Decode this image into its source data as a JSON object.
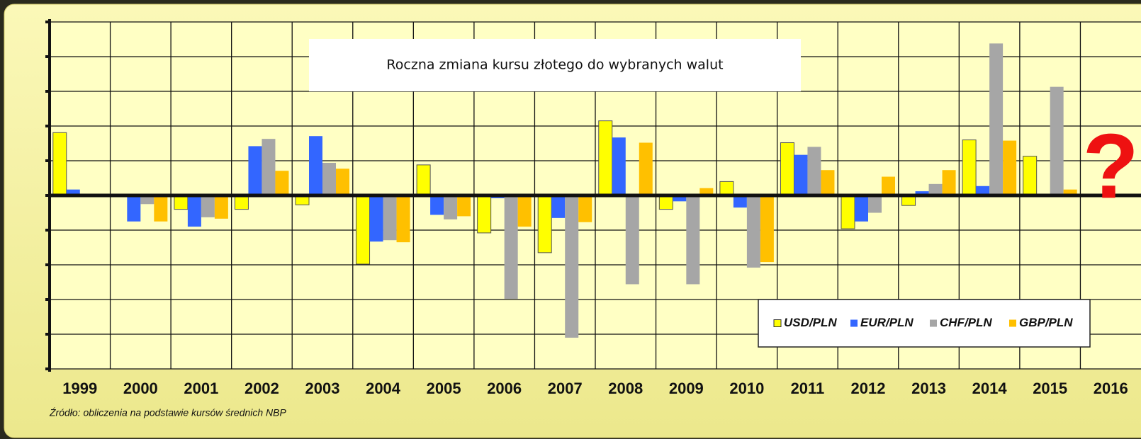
{
  "chart_data": {
    "type": "bar",
    "title": "Roczna zmiana kursu złotego do wybranych walut",
    "source": "Źródło: obliczenia na podstawie kursów średnich NBP",
    "annotation": "?",
    "categories": [
      "1999",
      "2000",
      "2001",
      "2002",
      "2003",
      "2004",
      "2005",
      "2006",
      "2007",
      "2008",
      "2009",
      "2010",
      "2011",
      "2012",
      "2013",
      "2014",
      "2015",
      "2016"
    ],
    "series": [
      {
        "name": "USD/PLN",
        "color": "#ffff00",
        "values": [
          18.1,
          null,
          -4,
          -4,
          -2.7,
          -19.8,
          8.8,
          -10.8,
          -16.5,
          21.5,
          -4,
          4,
          15.2,
          -9.6,
          -2.9,
          16,
          11.3,
          null
        ]
      },
      {
        "name": "EUR/PLN",
        "color": "#3366ff",
        "values": [
          1.7,
          -7.5,
          -9,
          14.2,
          17.1,
          -13.3,
          -5.6,
          -0.8,
          -6.5,
          16.7,
          -1.7,
          -3.5,
          11.7,
          -7.5,
          1.2,
          2.7,
          null,
          null
        ]
      },
      {
        "name": "CHF/PLN",
        "color": "#a6a6a6",
        "values": [
          null,
          -2.5,
          -6.3,
          16.3,
          9.4,
          -12.9,
          -6.9,
          -29.8,
          -41,
          -25.6,
          -25.6,
          -20.8,
          14,
          -5,
          3.3,
          43.8,
          31.3,
          null
        ]
      },
      {
        "name": "GBP/PLN",
        "color": "#ffc000",
        "values": [
          null,
          -7.5,
          -6.7,
          7.1,
          7.7,
          -13.5,
          -6,
          -9,
          -7.7,
          15.2,
          2.1,
          -19.2,
          7.3,
          5.4,
          7.3,
          15.8,
          1.7,
          null
        ]
      }
    ],
    "ylim": [
      -50,
      50
    ],
    "yticks": [
      -50,
      -40,
      -30,
      -20,
      -10,
      0,
      10,
      20,
      30,
      40,
      50
    ],
    "grid": true,
    "legend": "lower right"
  }
}
